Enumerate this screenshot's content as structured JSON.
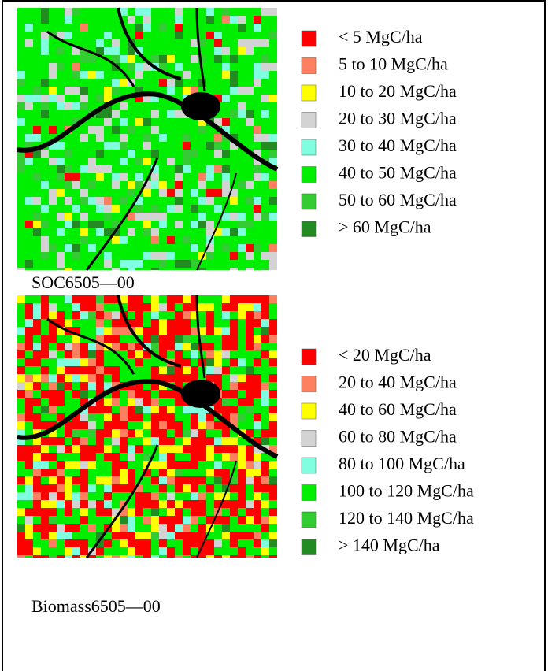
{
  "maps": [
    {
      "caption": "SOC6505—00",
      "legend": [
        {
          "label": "< 5 MgC/ha",
          "color": "#ff0000"
        },
        {
          "label": "5 to 10 MgC/ha",
          "color": "#ff8060"
        },
        {
          "label": "10 to 20 MgC/ha",
          "color": "#ffff00"
        },
        {
          "label": "20 to 30 MgC/ha",
          "color": "#d3d3d3"
        },
        {
          "label": "30 to 40 MgC/ha",
          "color": "#80ffe0"
        },
        {
          "label": "40 to 50 MgC/ha",
          "color": "#00ee00"
        },
        {
          "label": "50 to 60 MgC/ha",
          "color": "#33cc33"
        },
        {
          "label": "> 60 MgC/ha",
          "color": "#228b22"
        }
      ]
    },
    {
      "caption": "Biomass6505—00",
      "legend": [
        {
          "label": "< 20 MgC/ha",
          "color": "#ff0000"
        },
        {
          "label": "20 to 40 MgC/ha",
          "color": "#ff8060"
        },
        {
          "label": "40 to 60 MgC/ha",
          "color": "#ffff00"
        },
        {
          "label": "60 to 80 MgC/ha",
          "color": "#d3d3d3"
        },
        {
          "label": "80 to 100 MgC/ha",
          "color": "#80ffe0"
        },
        {
          "label": "100 to 120 MgC/ha",
          "color": "#00ee00"
        },
        {
          "label": "120 to 140 MgC/ha",
          "color": "#33cc33"
        },
        {
          "label": "> 140 MgC/ha",
          "color": "#228b22"
        }
      ]
    }
  ]
}
